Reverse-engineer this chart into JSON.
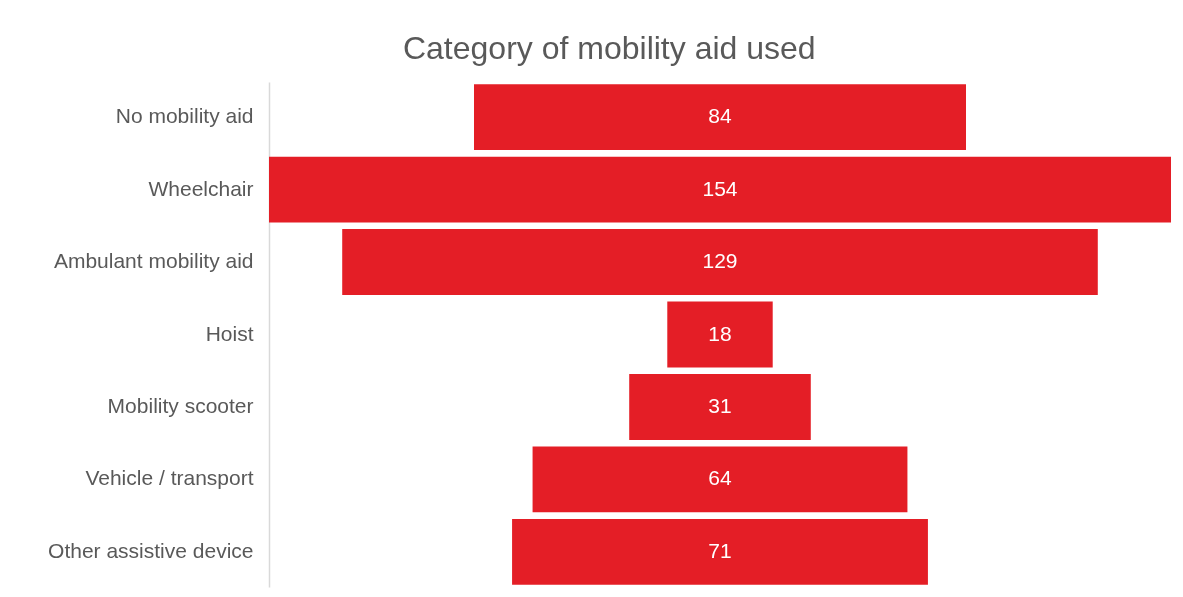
{
  "chart_data": {
    "type": "other",
    "title": "Category of mobility aid used",
    "categories": [
      "No mobility aid",
      "Wheelchair",
      "Ambulant mobility aid",
      "Hoist",
      "Mobility scooter",
      "Vehicle / transport",
      "Other assistive device"
    ],
    "values": [
      84,
      154,
      129,
      18,
      31,
      64,
      71
    ],
    "color": "#e41e26",
    "data_labels": true
  }
}
